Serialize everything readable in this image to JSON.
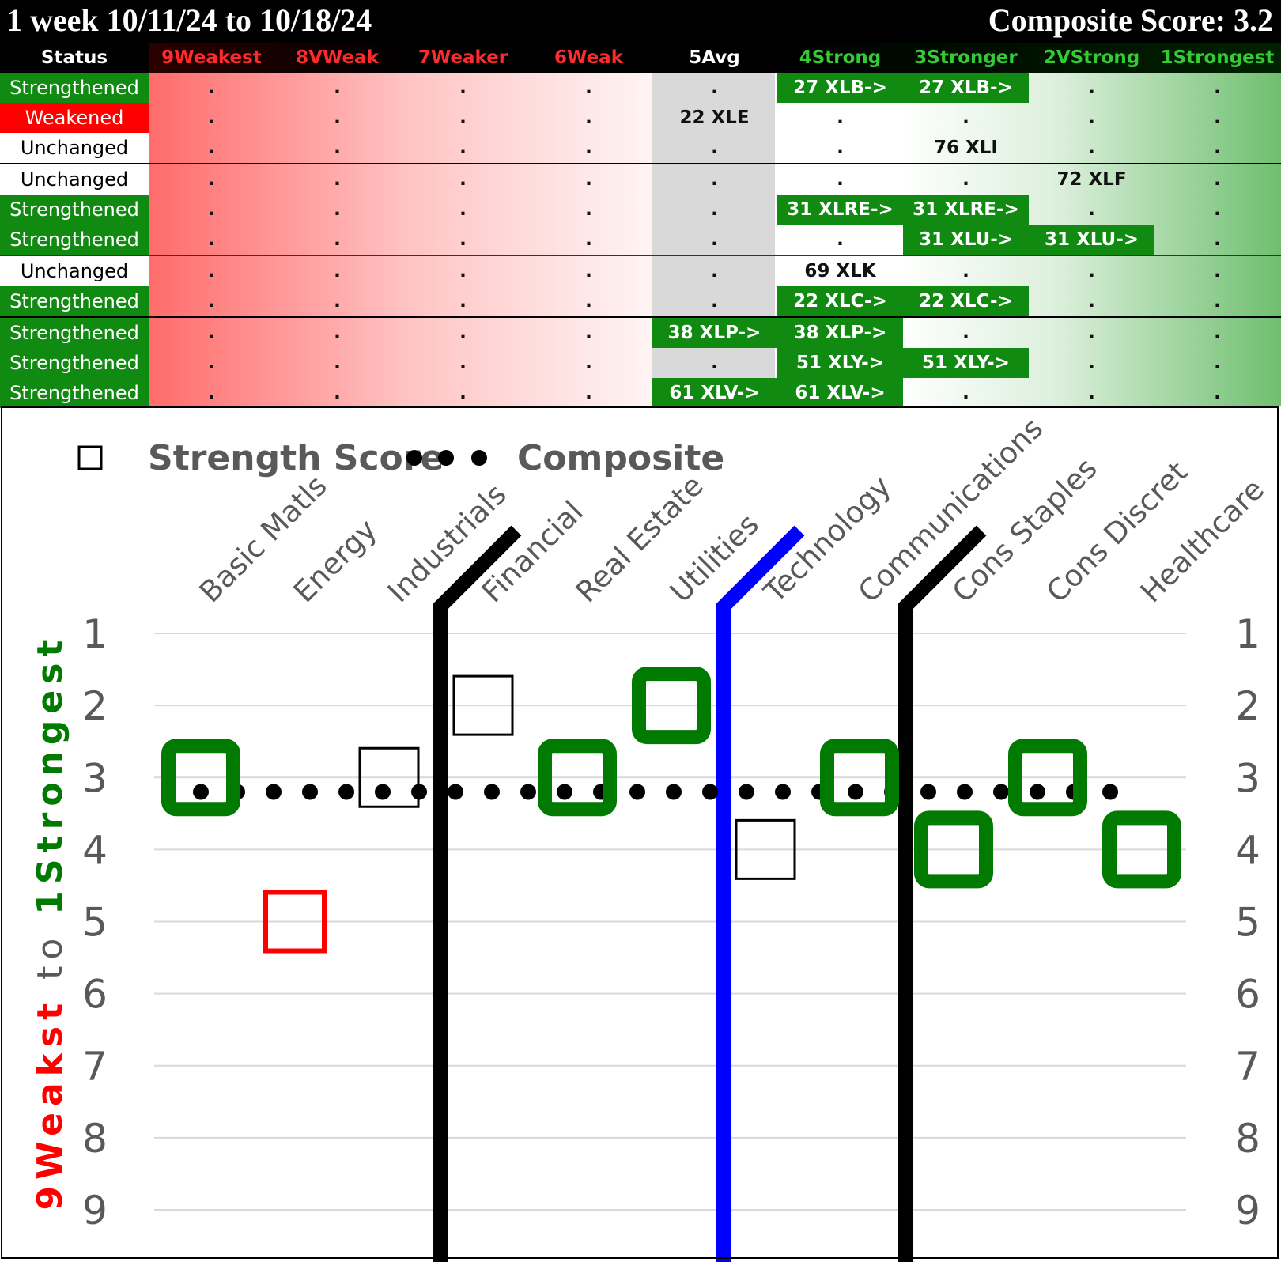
{
  "header": {
    "title_left": "1 week 10/11/24 to 10/18/24",
    "title_right": "Composite Score: 3.2"
  },
  "table": {
    "status_header": "Status",
    "columns": [
      {
        "label": "9Weakest",
        "color": "#ff2b2b"
      },
      {
        "label": "8VWeak",
        "color": "#ff2b2b"
      },
      {
        "label": "7Weaker",
        "color": "#ff2b2b"
      },
      {
        "label": "6Weak",
        "color": "#ff2b2b"
      },
      {
        "label": "5Avg",
        "color": "#ffffff"
      },
      {
        "label": "4Strong",
        "color": "#33cc33"
      },
      {
        "label": "3Stronger",
        "color": "#33cc33"
      },
      {
        "label": "2VStrong",
        "color": "#33cc33"
      },
      {
        "label": "1Strongest",
        "color": "#33cc33"
      }
    ],
    "rows": [
      {
        "status": "Strengthened",
        "status_bg": "#118a11",
        "status_color": "#ffffff",
        "cells": [
          ".",
          ".",
          ".",
          ".",
          ".",
          "27 XLB->",
          "27 XLB->",
          ".",
          "."
        ],
        "green": [
          5,
          6
        ]
      },
      {
        "status": "Weakened",
        "status_bg": "#ff0000",
        "status_color": "#ffffff",
        "cells": [
          ".",
          ".",
          ".",
          ".",
          "22 XLE",
          ".",
          ".",
          ".",
          "."
        ],
        "green": []
      },
      {
        "status": "Unchanged",
        "status_bg": "#ffffff",
        "status_color": "#000000",
        "cells": [
          ".",
          ".",
          ".",
          ".",
          ".",
          ".",
          "76 XLI",
          ".",
          "."
        ],
        "green": []
      },
      {
        "status": "Unchanged",
        "status_bg": "#ffffff",
        "status_color": "#000000",
        "cells": [
          ".",
          ".",
          ".",
          ".",
          ".",
          ".",
          ".",
          "72 XLF",
          "."
        ],
        "green": []
      },
      {
        "status": "Strengthened",
        "status_bg": "#118a11",
        "status_color": "#ffffff",
        "cells": [
          ".",
          ".",
          ".",
          ".",
          ".",
          "31 XLRE->",
          "31 XLRE->",
          ".",
          "."
        ],
        "green": [
          5,
          6
        ]
      },
      {
        "status": "Strengthened",
        "status_bg": "#118a11",
        "status_color": "#ffffff",
        "cells": [
          ".",
          ".",
          ".",
          ".",
          ".",
          ".",
          "31 XLU->",
          "31 XLU->",
          "."
        ],
        "green": [
          6,
          7
        ]
      },
      {
        "status": "Unchanged",
        "status_bg": "#ffffff",
        "status_color": "#000000",
        "cells": [
          ".",
          ".",
          ".",
          ".",
          ".",
          "69 XLK",
          ".",
          ".",
          "."
        ],
        "green": []
      },
      {
        "status": "Strengthened",
        "status_bg": "#118a11",
        "status_color": "#ffffff",
        "cells": [
          ".",
          ".",
          ".",
          ".",
          ".",
          "22 XLC->",
          "22 XLC->",
          ".",
          "."
        ],
        "green": [
          5,
          6
        ]
      },
      {
        "status": "Strengthened",
        "status_bg": "#118a11",
        "status_color": "#ffffff",
        "cells": [
          ".",
          ".",
          ".",
          ".",
          "38 XLP->",
          "38 XLP->",
          ".",
          ".",
          "."
        ],
        "green": [
          4,
          5
        ]
      },
      {
        "status": "Strengthened",
        "status_bg": "#118a11",
        "status_color": "#ffffff",
        "cells": [
          ".",
          ".",
          ".",
          ".",
          ".",
          "51 XLY->",
          "51 XLY->",
          ".",
          "."
        ],
        "green": [
          5,
          6
        ]
      },
      {
        "status": "Strengthened",
        "status_bg": "#118a11",
        "status_color": "#ffffff",
        "cells": [
          ".",
          ".",
          ".",
          ".",
          "61 XLV->",
          "61 XLV->",
          ".",
          ".",
          "."
        ],
        "green": [
          4,
          5
        ]
      }
    ]
  },
  "chart_data": {
    "type": "scatter",
    "legend": {
      "strength_label": "Strength Score",
      "composite_label": "Composite",
      "placement": "top-left"
    },
    "y_axis_label": {
      "part1": "9Weakst",
      "part2": "to",
      "part3": "1Strongest",
      "color1": "#ff0000",
      "color3": "#007a00"
    },
    "ylim": [
      1,
      9
    ],
    "y_ticks": [
      "1",
      "2",
      "3",
      "4",
      "5",
      "6",
      "7",
      "8",
      "9"
    ],
    "categories": [
      "Basic Matls",
      "Energy",
      "Industrials",
      "Financial",
      "Real Estate",
      "Utilities",
      "Technology",
      "Communications",
      "Cons Staples",
      "Cons Discret",
      "Healthcare"
    ],
    "series": [
      {
        "name": "Strength Score",
        "values": [
          3,
          5,
          3,
          2,
          3,
          2,
          4,
          3,
          4,
          3,
          4
        ],
        "status": [
          "Strengthened",
          "Weakened",
          "Unchanged",
          "Unchanged",
          "Strengthened",
          "Strengthened",
          "Unchanged",
          "Strengthened",
          "Strengthened",
          "Strengthened",
          "Strengthened"
        ]
      },
      {
        "name": "Composite",
        "value": 3.2
      }
    ],
    "colors": {
      "strengthened": "#007a00",
      "weakened": "#ff0000",
      "unchanged": "#000000",
      "divider_black": "#000000",
      "divider_blue": "#0000ff",
      "grid": "#d9d9d9",
      "tick_text": "#595959"
    },
    "grid": true
  }
}
